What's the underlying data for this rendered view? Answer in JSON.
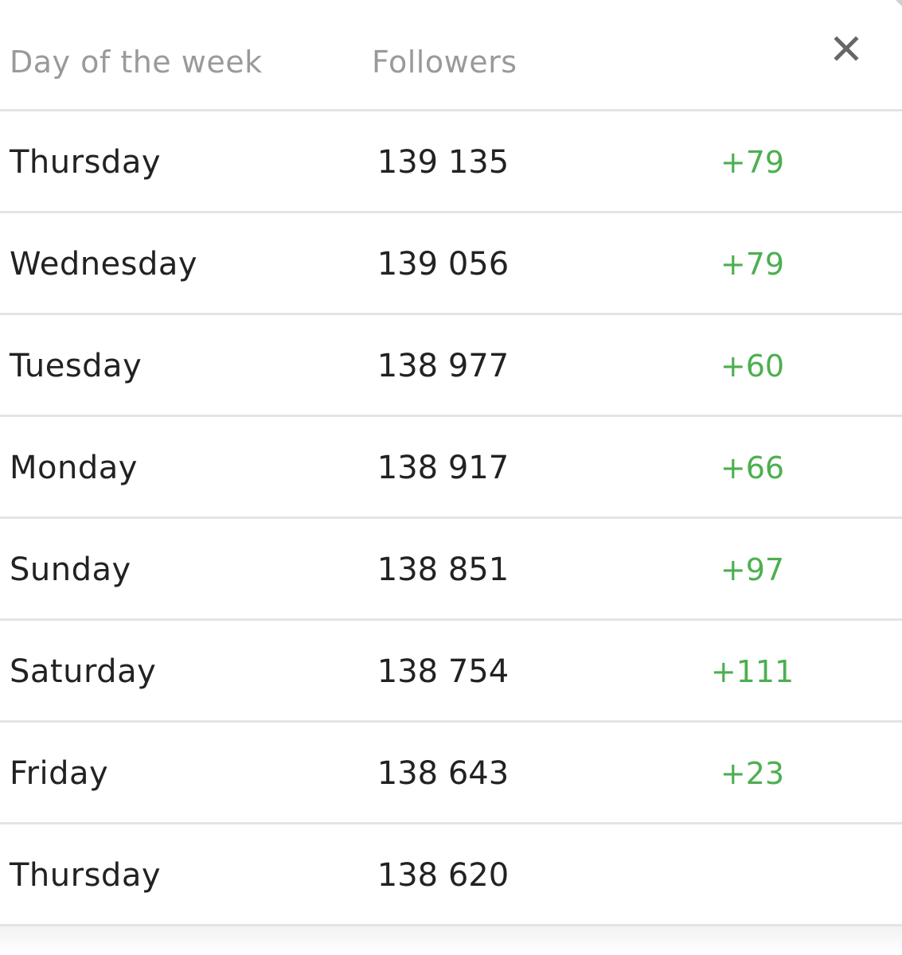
{
  "table": {
    "headers": {
      "day": "Day of the week",
      "followers": "Followers"
    },
    "close_icon": "close-icon",
    "accent_color": "#4caf50",
    "rows": [
      {
        "day": "Thursday",
        "followers": "139 135",
        "change": "+79"
      },
      {
        "day": "Wednesday",
        "followers": "139 056",
        "change": "+79"
      },
      {
        "day": "Tuesday",
        "followers": "138 977",
        "change": "+60"
      },
      {
        "day": "Monday",
        "followers": "138 917",
        "change": "+66"
      },
      {
        "day": "Sunday",
        "followers": "138 851",
        "change": "+97"
      },
      {
        "day": "Saturday",
        "followers": "138 754",
        "change": "+111"
      },
      {
        "day": "Friday",
        "followers": "138 643",
        "change": "+23"
      },
      {
        "day": "Thursday",
        "followers": "138 620",
        "change": ""
      }
    ]
  }
}
